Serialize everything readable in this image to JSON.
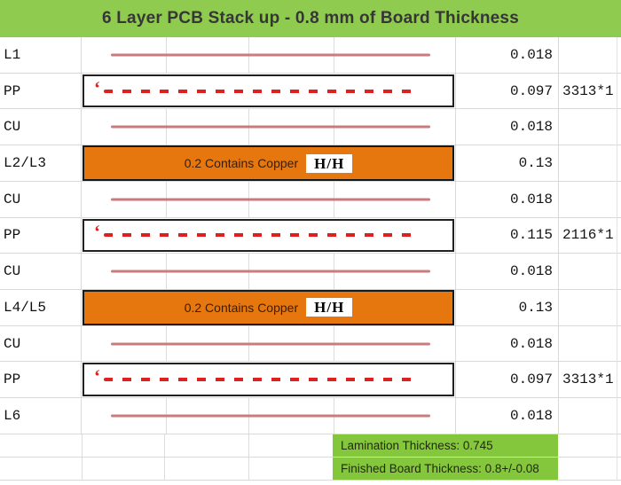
{
  "header": {
    "title": "6 Layer PCB Stack up - 0.8 mm of Board Thickness"
  },
  "table": {
    "rows": [
      {
        "label": "L1",
        "type": "copper-line",
        "value": "0.018",
        "extra": ""
      },
      {
        "label": "PP",
        "type": "prepreg",
        "prefix_mark": "‘",
        "value": "0.097",
        "extra": "3313*1"
      },
      {
        "label": "CU",
        "type": "copper-line",
        "value": "0.018",
        "extra": ""
      },
      {
        "label": "L2/L3",
        "type": "copper-core",
        "core_text": "0.2 Contains Copper",
        "core_badge": "H/H",
        "value": "0.13",
        "extra": ""
      },
      {
        "label": "CU",
        "type": "copper-line",
        "value": "0.018",
        "extra": ""
      },
      {
        "label": "PP",
        "type": "prepreg",
        "prefix_mark": "‘",
        "value": "0.115",
        "extra": "2116*1"
      },
      {
        "label": "CU",
        "type": "copper-line",
        "value": "0.018",
        "extra": ""
      },
      {
        "label": "L4/L5",
        "type": "copper-core",
        "core_text": "0.2 Contains Copper",
        "core_badge": "H/H",
        "value": "0.13",
        "extra": ""
      },
      {
        "label": "CU",
        "type": "copper-line",
        "value": "0.018",
        "extra": ""
      },
      {
        "label": "PP",
        "type": "prepreg",
        "prefix_mark": "‘",
        "value": "0.097",
        "extra": "3313*1"
      },
      {
        "label": "L6",
        "type": "copper-line",
        "value": "0.018",
        "extra": ""
      }
    ]
  },
  "footer": {
    "rows": [
      "Lamination Thickness: 0.745",
      "Finished Board Thickness: 0.8+/-0.08"
    ]
  },
  "colors": {
    "header_green": "#8ecb4f",
    "footer_green": "#84c73d",
    "copper_orange": "#e6770e",
    "copper_line": "#c97c7c",
    "dash_red": "#e02020"
  }
}
